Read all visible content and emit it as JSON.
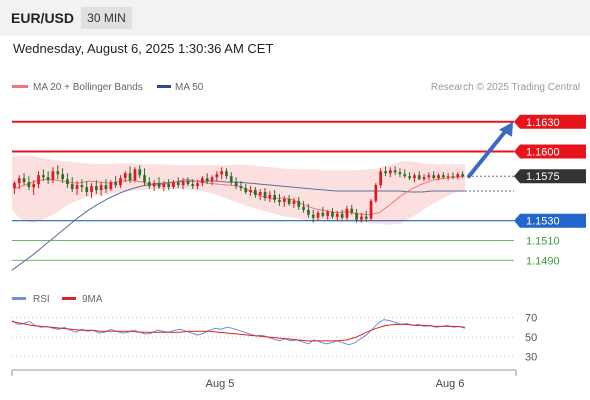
{
  "header": {
    "symbol": "EUR/USD",
    "timeframe": "30 MIN"
  },
  "timestamp": "Wednesday, August 6, 2025 1:30:36 AM CET",
  "legend": {
    "ma20_bb": "MA 20 + Bollinger Bands",
    "ma50": "MA 50"
  },
  "copyright": "Research © 2025 Trading Central",
  "colors": {
    "resistance": "#e8141b",
    "support_main": "#2266cc",
    "support_minor": "#3a9c3a",
    "ma20": "#f07878",
    "ma50": "#5a6f9e",
    "bands": "#fbdada",
    "rsi": "#6f8fdc",
    "rsi_ma": "#dd2222",
    "up_candle": "#e8141b",
    "down_candle": "#2a6e2a",
    "arrow": "#3b6bbf",
    "current": "#333333"
  },
  "chart_data": [
    {
      "type": "candlestick",
      "ylim": [
        1.1466,
        1.1648
      ],
      "levels": [
        {
          "label": "1.1630",
          "value": 1.163,
          "kind": "resistance"
        },
        {
          "label": "1.1600",
          "value": 1.16,
          "kind": "resistance"
        },
        {
          "label": "1.1575",
          "value": 1.1575,
          "kind": "current"
        },
        {
          "label": "1.1530",
          "value": 1.153,
          "kind": "support_main"
        },
        {
          "label": "1.1510",
          "value": 1.151,
          "kind": "support_minor"
        },
        {
          "label": "1.1490",
          "value": 1.149,
          "kind": "support_minor"
        }
      ],
      "candles": [
        [
          1.1563,
          1.157,
          1.1557,
          1.1568
        ],
        [
          1.1568,
          1.1576,
          1.1562,
          1.1573
        ],
        [
          1.1573,
          1.1578,
          1.1566,
          1.1569
        ],
        [
          1.1569,
          1.1575,
          1.1561,
          1.1564
        ],
        [
          1.1564,
          1.1571,
          1.1556,
          1.1567
        ],
        [
          1.1567,
          1.158,
          1.1563,
          1.1576
        ],
        [
          1.1576,
          1.1582,
          1.157,
          1.1574
        ],
        [
          1.1574,
          1.158,
          1.1567,
          1.1571
        ],
        [
          1.1571,
          1.1584,
          1.1568,
          1.158
        ],
        [
          1.158,
          1.1586,
          1.1572,
          1.1577
        ],
        [
          1.1577,
          1.1583,
          1.1568,
          1.1572
        ],
        [
          1.1572,
          1.1578,
          1.1563,
          1.1567
        ],
        [
          1.1567,
          1.1574,
          1.1559,
          1.1562
        ],
        [
          1.1562,
          1.157,
          1.1556,
          1.1566
        ],
        [
          1.1566,
          1.1572,
          1.1559,
          1.1564
        ],
        [
          1.1564,
          1.157,
          1.1555,
          1.1559
        ],
        [
          1.1559,
          1.1568,
          1.1553,
          1.1565
        ],
        [
          1.1565,
          1.1571,
          1.1557,
          1.1561
        ],
        [
          1.1561,
          1.1569,
          1.1555,
          1.1566
        ],
        [
          1.1566,
          1.1572,
          1.1558,
          1.1562
        ],
        [
          1.1562,
          1.1571,
          1.156,
          1.1569
        ],
        [
          1.1569,
          1.1575,
          1.1563,
          1.1566
        ],
        [
          1.1566,
          1.1576,
          1.1563,
          1.1573
        ],
        [
          1.1573,
          1.158,
          1.1569,
          1.1578
        ],
        [
          1.1578,
          1.1585,
          1.1568,
          1.1571
        ],
        [
          1.1571,
          1.1584,
          1.1569,
          1.1582
        ],
        [
          1.1582,
          1.1586,
          1.1573,
          1.1576
        ],
        [
          1.1576,
          1.1583,
          1.1566,
          1.1569
        ],
        [
          1.1569,
          1.1574,
          1.1562,
          1.1565
        ],
        [
          1.1565,
          1.1571,
          1.156,
          1.1568
        ],
        [
          1.1568,
          1.1574,
          1.1562,
          1.1564
        ],
        [
          1.1564,
          1.157,
          1.156,
          1.1567
        ],
        [
          1.1567,
          1.1572,
          1.1561,
          1.1564
        ],
        [
          1.1564,
          1.1571,
          1.1562,
          1.1569
        ],
        [
          1.1569,
          1.1574,
          1.1563,
          1.1566
        ],
        [
          1.1566,
          1.1573,
          1.1562,
          1.157
        ],
        [
          1.157,
          1.1574,
          1.1565,
          1.1567
        ],
        [
          1.1567,
          1.1572,
          1.1562,
          1.1565
        ],
        [
          1.1565,
          1.1571,
          1.1562,
          1.1568
        ],
        [
          1.1568,
          1.1575,
          1.1565,
          1.1573
        ],
        [
          1.1573,
          1.1578,
          1.1567,
          1.157
        ],
        [
          1.157,
          1.1576,
          1.1566,
          1.1574
        ],
        [
          1.1574,
          1.158,
          1.157,
          1.1577
        ],
        [
          1.1577,
          1.1584,
          1.1572,
          1.158
        ],
        [
          1.158,
          1.1583,
          1.1572,
          1.1575
        ],
        [
          1.1575,
          1.1579,
          1.1566,
          1.1569
        ],
        [
          1.1569,
          1.1574,
          1.1562,
          1.1565
        ],
        [
          1.1565,
          1.157,
          1.156,
          1.1563
        ],
        [
          1.1563,
          1.1567,
          1.1557,
          1.1559
        ],
        [
          1.1559,
          1.1565,
          1.1555,
          1.1561
        ],
        [
          1.1561,
          1.1564,
          1.1553,
          1.1556
        ],
        [
          1.1556,
          1.1562,
          1.1551,
          1.1559
        ],
        [
          1.1559,
          1.1563,
          1.155,
          1.1553
        ],
        [
          1.1553,
          1.156,
          1.1549,
          1.1556
        ],
        [
          1.1556,
          1.1561,
          1.1548,
          1.1551
        ],
        [
          1.1551,
          1.1557,
          1.1545,
          1.1549
        ],
        [
          1.1549,
          1.1555,
          1.1544,
          1.1552
        ],
        [
          1.1552,
          1.1556,
          1.1545,
          1.1547
        ],
        [
          1.1547,
          1.1553,
          1.1543,
          1.155
        ],
        [
          1.155,
          1.1554,
          1.1541,
          1.1544
        ],
        [
          1.1544,
          1.155,
          1.1538,
          1.1541
        ],
        [
          1.1541,
          1.1547,
          1.1533,
          1.1536
        ],
        [
          1.1536,
          1.1541,
          1.1528,
          1.1533
        ],
        [
          1.1533,
          1.154,
          1.153,
          1.1538
        ],
        [
          1.1538,
          1.1544,
          1.1533,
          1.1535
        ],
        [
          1.1535,
          1.1541,
          1.1531,
          1.1539
        ],
        [
          1.1539,
          1.1543,
          1.1532,
          1.1534
        ],
        [
          1.1534,
          1.154,
          1.153,
          1.1537
        ],
        [
          1.1537,
          1.1541,
          1.1531,
          1.1533
        ],
        [
          1.1533,
          1.1545,
          1.1531,
          1.1542
        ],
        [
          1.1542,
          1.1546,
          1.1536,
          1.1538
        ],
        [
          1.1538,
          1.1542,
          1.1528,
          1.1531
        ],
        [
          1.1531,
          1.1538,
          1.1528,
          1.1534
        ],
        [
          1.1534,
          1.154,
          1.1529,
          1.1532
        ],
        [
          1.1532,
          1.1552,
          1.153,
          1.155
        ],
        [
          1.155,
          1.1568,
          1.1548,
          1.1566
        ],
        [
          1.1566,
          1.1583,
          1.1563,
          1.158
        ],
        [
          1.158,
          1.1585,
          1.1575,
          1.1578
        ],
        [
          1.1578,
          1.1584,
          1.1574,
          1.1581
        ],
        [
          1.1581,
          1.1585,
          1.1576,
          1.1579
        ],
        [
          1.1579,
          1.1583,
          1.1574,
          1.1577
        ],
        [
          1.1577,
          1.1582,
          1.1573,
          1.1575
        ],
        [
          1.1575,
          1.1579,
          1.1571,
          1.1573
        ],
        [
          1.1573,
          1.1578,
          1.1569,
          1.1576
        ],
        [
          1.1576,
          1.158,
          1.1571,
          1.1572
        ],
        [
          1.1572,
          1.1577,
          1.157,
          1.1574
        ],
        [
          1.1574,
          1.1579,
          1.1571,
          1.1576
        ],
        [
          1.1576,
          1.158,
          1.1572,
          1.1573
        ],
        [
          1.1573,
          1.1578,
          1.1571,
          1.1576
        ],
        [
          1.1576,
          1.1579,
          1.1572,
          1.1574
        ],
        [
          1.1574,
          1.1578,
          1.1571,
          1.1575
        ],
        [
          1.1575,
          1.1579,
          1.1572,
          1.1574
        ],
        [
          1.1574,
          1.1579,
          1.1572,
          1.1577
        ],
        [
          1.1577,
          1.158,
          1.1573,
          1.1575
        ]
      ],
      "ma20": [
        1.1562,
        1.1566,
        1.157,
        1.1572,
        1.1571,
        1.1569,
        1.1568,
        1.157,
        1.1569,
        1.1568,
        1.157,
        1.1571,
        1.1569,
        1.1566,
        1.1567,
        1.1569,
        1.1572,
        1.157,
        1.1568,
        1.1567,
        1.1566,
        1.1565,
        1.156,
        1.1555,
        1.1552,
        1.1553,
        1.1551,
        1.1546,
        1.1542,
        1.154,
        1.1538,
        1.1539,
        1.1537,
        1.1536,
        1.1538,
        1.1546,
        1.1555,
        1.1562,
        1.1567,
        1.1571,
        1.1573,
        1.1574,
        1.1575
      ],
      "ma50": [
        1.148,
        1.1488,
        1.1496,
        1.1505,
        1.1514,
        1.1523,
        1.1532,
        1.154,
        1.1547,
        1.1553,
        1.1558,
        1.1562,
        1.1565,
        1.1567,
        1.1568,
        1.1569,
        1.157,
        1.157,
        1.157,
        1.157,
        1.1569,
        1.1569,
        1.1568,
        1.1567,
        1.1566,
        1.1565,
        1.1564,
        1.1563,
        1.1562,
        1.1561,
        1.156,
        1.156,
        1.156,
        1.156,
        1.156,
        1.156,
        1.156,
        1.1559,
        1.1559,
        1.156,
        1.156,
        1.156,
        1.156
      ],
      "band_upper": [
        1.1595,
        1.1596,
        1.1595,
        1.1593,
        1.1591,
        1.159,
        1.1589,
        1.1588,
        1.1587,
        1.1587,
        1.1588,
        1.1588,
        1.1587,
        1.1587,
        1.1587,
        1.1586,
        1.1586,
        1.1586,
        1.1586,
        1.1586,
        1.1586,
        1.1587,
        1.1586,
        1.1585,
        1.1584,
        1.1583,
        1.1582,
        1.1582,
        1.1582,
        1.1581,
        1.1581,
        1.1581,
        1.1581,
        1.1582,
        1.1583,
        1.1586,
        1.159,
        1.159,
        1.1588,
        1.1587,
        1.1587,
        1.1587,
        1.1587
      ],
      "band_lower": [
        1.154,
        1.153,
        1.1528,
        1.1532,
        1.1537,
        1.1545,
        1.155,
        1.1554,
        1.1556,
        1.1557,
        1.1559,
        1.156,
        1.1561,
        1.1562,
        1.1562,
        1.1562,
        1.1562,
        1.1561,
        1.1559,
        1.1556,
        1.1552,
        1.1548,
        1.1544,
        1.1541,
        1.1538,
        1.1535,
        1.1533,
        1.1531,
        1.153,
        1.1529,
        1.1529,
        1.1529,
        1.1529,
        1.1528,
        1.1527,
        1.1526,
        1.1527,
        1.1533,
        1.154,
        1.1547,
        1.1553,
        1.1558,
        1.1561
      ],
      "arrow": {
        "from": 1.1575,
        "to": 1.163
      }
    },
    {
      "type": "line",
      "series": [
        {
          "name": "RSI",
          "values": [
            67,
            63,
            64,
            66,
            62,
            60,
            61,
            59,
            58,
            60,
            57,
            55,
            58,
            56,
            57,
            54,
            55,
            58,
            56,
            54,
            55,
            57,
            55,
            53,
            54,
            57,
            56,
            55,
            57,
            58,
            56,
            54,
            52,
            54,
            57,
            59,
            58,
            60,
            59,
            57,
            55,
            53,
            51,
            52,
            50,
            48,
            46,
            48,
            46,
            47,
            45,
            43,
            47,
            45,
            43,
            44,
            46,
            44,
            42,
            44,
            48,
            52,
            58,
            64,
            68,
            67,
            65,
            63,
            64,
            62,
            63,
            61,
            62,
            60,
            61,
            62,
            60,
            61,
            59
          ]
        },
        {
          "name": "9MA",
          "values": [
            66,
            64,
            62,
            61,
            60,
            59,
            58,
            57,
            57,
            56,
            56,
            56,
            56,
            55,
            55,
            55,
            55,
            55,
            56,
            56,
            56,
            55,
            54,
            53,
            52,
            51,
            50,
            49,
            48,
            47,
            46,
            46,
            46,
            46,
            47,
            50,
            55,
            59,
            62,
            63,
            63,
            62,
            62,
            61,
            61,
            61,
            60
          ]
        }
      ],
      "ylim": [
        20,
        80
      ],
      "ticks": [
        "70",
        "50",
        "30"
      ],
      "guides": [
        70,
        50,
        30
      ]
    }
  ],
  "xaxis": {
    "labels": [
      "Aug 5",
      "Aug 6"
    ]
  }
}
